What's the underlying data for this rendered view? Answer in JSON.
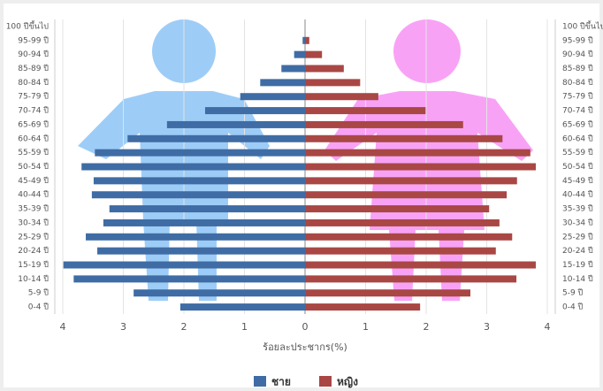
{
  "chart_data": {
    "type": "population-pyramid",
    "xlabel": "ร้อยละประชากร(%)",
    "categories": [
      "100 ปีขึ้นไป",
      "95-99 ปี",
      "90-94 ปี",
      "85-89 ปี",
      "80-84 ปี",
      "75-79 ปี",
      "70-74 ปี",
      "65-69 ปี",
      "60-64 ปี",
      "55-59 ปี",
      "50-54 ปี",
      "45-49 ปี",
      "40-44 ปี",
      "35-39 ปี",
      "30-34 ปี",
      "25-29 ปี",
      "20-24 ปี",
      "15-19 ปี",
      "10-14 ปี",
      "5-9 ปี",
      "0-4 ปี"
    ],
    "series": [
      {
        "name": "ชาย",
        "color": "#3f6ca4",
        "values": [
          0,
          -0.04,
          -0.18,
          -0.39,
          -0.74,
          -1.07,
          -1.65,
          -2.28,
          -2.93,
          -3.47,
          -3.69,
          -3.49,
          -3.52,
          -3.23,
          -3.33,
          -3.62,
          -3.43,
          -3.99,
          -3.82,
          -2.83,
          -2.06
        ]
      },
      {
        "name": "หญิง",
        "color": "#a94744",
        "values": [
          0,
          0.07,
          0.28,
          0.64,
          0.91,
          1.21,
          1.99,
          2.61,
          3.26,
          3.72,
          3.81,
          3.5,
          3.33,
          3.04,
          3.21,
          3.42,
          3.15,
          3.81,
          3.49,
          2.73,
          1.9
        ]
      }
    ],
    "xlim": [
      -4,
      4
    ],
    "xticks": [
      {
        "value": -4,
        "label": "4"
      },
      {
        "value": -3,
        "label": "3"
      },
      {
        "value": -2,
        "label": "2"
      },
      {
        "value": -1,
        "label": "1"
      },
      0,
      1,
      2,
      3,
      4
    ],
    "grid": true
  }
}
